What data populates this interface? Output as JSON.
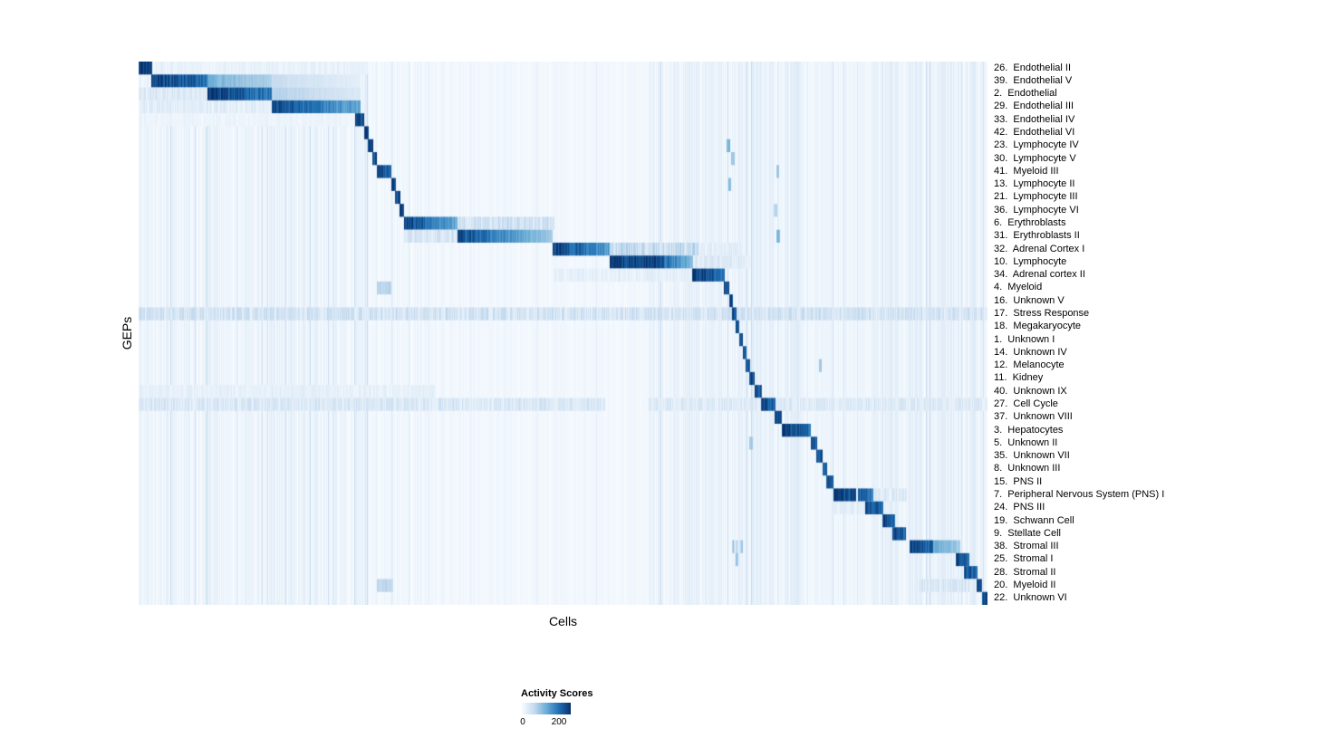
{
  "figure": {
    "xlabel": "Cells",
    "ylabel": "GEPs"
  },
  "legend": {
    "title": "Activity Scores",
    "tick_min": "0",
    "tick_max": "200"
  },
  "chart_data": {
    "type": "heatmap",
    "title": "",
    "xlabel": "Cells",
    "ylabel": "GEPs",
    "legend_title": "Activity Scores",
    "value_range": [
      0,
      200
    ],
    "grid": false,
    "x_tick_labels": [],
    "colormap": {
      "name": "Blues",
      "low": "#f7fbff",
      "high": "#08306b",
      "stops": [
        "#f7fbff",
        "#c6dbef",
        "#6baed6",
        "#2171b5",
        "#08306b"
      ]
    },
    "noise_regions": [
      [
        0.0,
        0.27,
        0.4
      ],
      [
        0.27,
        0.43,
        0.22
      ],
      [
        0.43,
        0.6,
        0.18
      ],
      [
        0.6,
        0.78,
        0.45
      ],
      [
        0.78,
        0.86,
        0.3
      ],
      [
        0.86,
        1.0,
        0.5
      ]
    ],
    "rows": [
      {
        "label": "26.  Endothelial II",
        "blocks": [
          [
            0.0,
            0.016,
            1.0,
            1.0
          ]
        ],
        "bg": [
          [
            0.016,
            0.27,
            0.07
          ]
        ]
      },
      {
        "label": "39.  Endothelial V",
        "blocks": [
          [
            0.016,
            0.082,
            1.0,
            0.8
          ],
          [
            0.082,
            0.157,
            0.5,
            0.32
          ],
          [
            0.157,
            0.262,
            0.25,
            0.1
          ]
        ]
      },
      {
        "label": "2.  Endothelial",
        "blocks": [
          [
            0.082,
            0.157,
            1.0,
            0.75
          ],
          [
            0.157,
            0.262,
            0.32,
            0.15
          ]
        ],
        "bg": [
          [
            0.0,
            0.082,
            0.12
          ]
        ]
      },
      {
        "label": "29.  Endothelial III",
        "blocks": [
          [
            0.157,
            0.262,
            0.95,
            0.55
          ]
        ],
        "bg": [
          [
            0.0,
            0.157,
            0.1
          ]
        ]
      },
      {
        "label": "33.  Endothelial IV",
        "blocks": [
          [
            0.256,
            0.266,
            0.95,
            0.95
          ]
        ],
        "bg": [
          [
            0.0,
            0.256,
            0.05
          ]
        ]
      },
      {
        "label": "42.  Endothelial VI",
        "blocks": [
          [
            0.266,
            0.271,
            0.95,
            0.95
          ]
        ]
      },
      {
        "label": "23.  Lymphocyte IV",
        "blocks": [
          [
            0.271,
            0.276,
            0.95,
            0.95
          ],
          [
            0.693,
            0.697,
            0.5,
            0.5
          ]
        ]
      },
      {
        "label": "30.  Lymphocyte V",
        "blocks": [
          [
            0.276,
            0.281,
            0.95,
            0.95
          ],
          [
            0.699,
            0.702,
            0.4,
            0.4
          ]
        ]
      },
      {
        "label": "41.  Myeloid III",
        "blocks": [
          [
            0.281,
            0.298,
            0.98,
            0.85
          ],
          [
            0.752,
            0.755,
            0.38,
            0.38
          ]
        ]
      },
      {
        "label": "13.  Lymphocyte II",
        "blocks": [
          [
            0.298,
            0.303,
            0.95,
            0.95
          ],
          [
            0.695,
            0.698,
            0.45,
            0.45
          ]
        ]
      },
      {
        "label": "21.  Lymphocyte III",
        "blocks": [
          [
            0.303,
            0.308,
            0.95,
            0.95
          ]
        ]
      },
      {
        "label": "36.  Lymphocyte VI",
        "blocks": [
          [
            0.308,
            0.313,
            0.95,
            0.95
          ],
          [
            0.749,
            0.752,
            0.32,
            0.32
          ]
        ]
      },
      {
        "label": "6.  Erythroblasts",
        "blocks": [
          [
            0.313,
            0.376,
            1.0,
            0.55
          ]
        ],
        "bg": [
          [
            0.376,
            0.49,
            0.18
          ]
        ]
      },
      {
        "label": "31.  Erythroblasts II",
        "blocks": [
          [
            0.376,
            0.488,
            0.95,
            0.35
          ],
          [
            0.752,
            0.756,
            0.45,
            0.45
          ]
        ],
        "bg": [
          [
            0.313,
            0.376,
            0.15
          ]
        ]
      },
      {
        "label": "32.  Adrenal Cortex I",
        "blocks": [
          [
            0.488,
            0.555,
            1.0,
            0.6
          ]
        ],
        "bg": [
          [
            0.555,
            0.66,
            0.22
          ],
          [
            0.66,
            0.71,
            0.1
          ]
        ]
      },
      {
        "label": "10.  Lymphocyte",
        "blocks": [
          [
            0.555,
            0.62,
            1.0,
            0.95
          ],
          [
            0.62,
            0.653,
            0.8,
            0.45
          ]
        ],
        "bg": [
          [
            0.653,
            0.72,
            0.12
          ]
        ]
      },
      {
        "label": "34.  Adrenal cortex II",
        "blocks": [
          [
            0.653,
            0.69,
            1.0,
            0.8
          ]
        ],
        "bg": [
          [
            0.488,
            0.653,
            0.08
          ]
        ]
      },
      {
        "label": "4.  Myeloid",
        "blocks": [
          [
            0.69,
            0.696,
            0.95,
            0.95
          ],
          [
            0.281,
            0.298,
            0.3,
            0.3
          ]
        ]
      },
      {
        "label": "16.  Unknown V",
        "blocks": [
          [
            0.696,
            0.7,
            0.92,
            0.92
          ]
        ]
      },
      {
        "label": "17.  Stress Response",
        "blocks": [
          [
            0.7,
            0.704,
            0.92,
            0.92
          ]
        ],
        "bg": [
          [
            0.0,
            1.0,
            0.17
          ]
        ]
      },
      {
        "label": "18.  Megakaryocyte",
        "blocks": [
          [
            0.704,
            0.708,
            0.92,
            0.92
          ]
        ]
      },
      {
        "label": "1.  Unknown I",
        "blocks": [
          [
            0.708,
            0.712,
            0.92,
            0.92
          ]
        ]
      },
      {
        "label": "14.  Unknown IV",
        "blocks": [
          [
            0.712,
            0.716,
            0.92,
            0.92
          ]
        ]
      },
      {
        "label": "12.  Melanocyte",
        "blocks": [
          [
            0.716,
            0.72,
            0.92,
            0.92
          ],
          [
            0.802,
            0.805,
            0.35,
            0.35
          ]
        ]
      },
      {
        "label": "11.  Kidney",
        "blocks": [
          [
            0.72,
            0.726,
            0.92,
            0.92
          ]
        ]
      },
      {
        "label": "40.  Unknown IX",
        "blocks": [
          [
            0.726,
            0.734,
            0.92,
            0.92
          ]
        ],
        "bg": [
          [
            0.0,
            0.35,
            0.08
          ]
        ]
      },
      {
        "label": "27.  Cell Cycle",
        "blocks": [
          [
            0.734,
            0.75,
            0.95,
            0.85
          ]
        ],
        "bg": [
          [
            0.0,
            0.55,
            0.14
          ],
          [
            0.6,
            1.0,
            0.12
          ]
        ]
      },
      {
        "label": "37.  Unknown VIII",
        "blocks": [
          [
            0.75,
            0.758,
            0.92,
            0.92
          ]
        ]
      },
      {
        "label": "3.  Hepatocytes",
        "blocks": [
          [
            0.758,
            0.792,
            0.98,
            0.8
          ]
        ]
      },
      {
        "label": "5.  Unknown II",
        "blocks": [
          [
            0.792,
            0.799,
            0.92,
            0.92
          ],
          [
            0.72,
            0.724,
            0.35,
            0.35
          ]
        ]
      },
      {
        "label": "35.  Unknown VII",
        "blocks": [
          [
            0.799,
            0.806,
            0.92,
            0.92
          ]
        ]
      },
      {
        "label": "8.  Unknown III",
        "blocks": [
          [
            0.806,
            0.811,
            0.92,
            0.92
          ]
        ]
      },
      {
        "label": "15.  PNS II",
        "blocks": [
          [
            0.811,
            0.819,
            0.92,
            0.92
          ]
        ]
      },
      {
        "label": "7.  Peripheral Nervous System (PNS) I",
        "blocks": [
          [
            0.819,
            0.845,
            1.0,
            0.9
          ],
          [
            0.848,
            0.866,
            0.9,
            0.75
          ]
        ],
        "bg": [
          [
            0.866,
            0.905,
            0.12
          ]
        ]
      },
      {
        "label": "24.  PNS III",
        "blocks": [
          [
            0.856,
            0.877,
            0.95,
            0.8
          ]
        ],
        "bg": [
          [
            0.819,
            0.856,
            0.1
          ]
        ]
      },
      {
        "label": "19.  Schwann Cell",
        "blocks": [
          [
            0.877,
            0.891,
            0.95,
            0.85
          ]
        ]
      },
      {
        "label": "9.  Stellate Cell",
        "blocks": [
          [
            0.888,
            0.904,
            0.97,
            0.85
          ]
        ]
      },
      {
        "label": "38.  Stromal III",
        "blocks": [
          [
            0.909,
            0.936,
            0.97,
            0.85
          ],
          [
            0.936,
            0.968,
            0.55,
            0.35
          ]
        ],
        "bg": [
          [
            0.7,
            0.712,
            0.25
          ]
        ]
      },
      {
        "label": "25.  Stromal I",
        "blocks": [
          [
            0.963,
            0.979,
            0.95,
            0.85
          ],
          [
            0.704,
            0.707,
            0.4,
            0.4
          ]
        ]
      },
      {
        "label": "28.  Stromal II",
        "blocks": [
          [
            0.973,
            0.988,
            0.92,
            0.8
          ]
        ]
      },
      {
        "label": "20.  Myeloid II",
        "blocks": [
          [
            0.988,
            0.994,
            0.95,
            0.95
          ],
          [
            0.281,
            0.3,
            0.28,
            0.28
          ]
        ],
        "bg": [
          [
            0.92,
            0.988,
            0.14
          ]
        ]
      },
      {
        "label": "22.  Unknown VI",
        "blocks": [
          [
            0.994,
            1.0,
            0.95,
            0.95
          ]
        ]
      }
    ]
  }
}
